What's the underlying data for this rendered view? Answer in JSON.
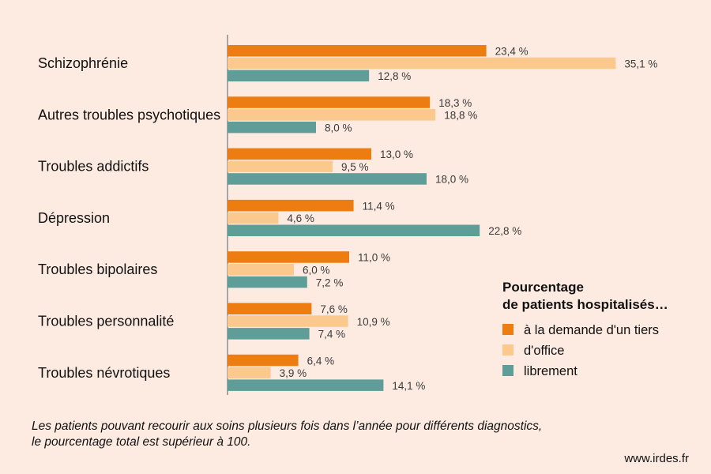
{
  "chart_data": {
    "type": "bar",
    "orientation": "horizontal",
    "categories": [
      "Schizophrénie",
      "Autres troubles psychotiques",
      "Troubles addictifs",
      "Dépression",
      "Troubles bipolaires",
      "Troubles personnalité",
      "Troubles névrotiques"
    ],
    "series": [
      {
        "name": "à la demande d'un tiers",
        "color": "#ee7d11",
        "values": [
          23.4,
          18.3,
          13.0,
          11.4,
          11.0,
          7.6,
          6.4
        ],
        "labels": [
          "23,4 %",
          "18,3 %",
          "13,0 %",
          "11,4 %",
          "11,0 %",
          "7,6 %",
          "6,4 %"
        ]
      },
      {
        "name": "d'office",
        "color": "#fbc98e",
        "values": [
          35.1,
          18.8,
          9.5,
          4.6,
          6.0,
          10.9,
          3.9
        ],
        "labels": [
          "35,1 %",
          "18,8 %",
          "9,5 %",
          "4,6 %",
          "6,0 %",
          "10,9 %",
          "3,9 %"
        ]
      },
      {
        "name": "librement",
        "color": "#5f9e98",
        "values": [
          12.8,
          8.0,
          18.0,
          22.8,
          7.2,
          7.4,
          14.1
        ],
        "labels": [
          "12,8 %",
          "8,0 %",
          "18,0 %",
          "22,8 %",
          "7,2 %",
          "7,4 %",
          "14,1 %"
        ]
      }
    ],
    "legend": {
      "title_lines": [
        "Pourcentage",
        "de patients hospitalisés…"
      ],
      "placement": "right"
    },
    "xlim": [
      0,
      40
    ],
    "grid": false
  },
  "footnote": {
    "line1": "Les patients pouvant recourir aux soins plusieurs fois dans l’année pour différents diagnostics,",
    "line2": "le pourcentage total est supérieur à 100."
  },
  "source": "www.irdes.fr"
}
